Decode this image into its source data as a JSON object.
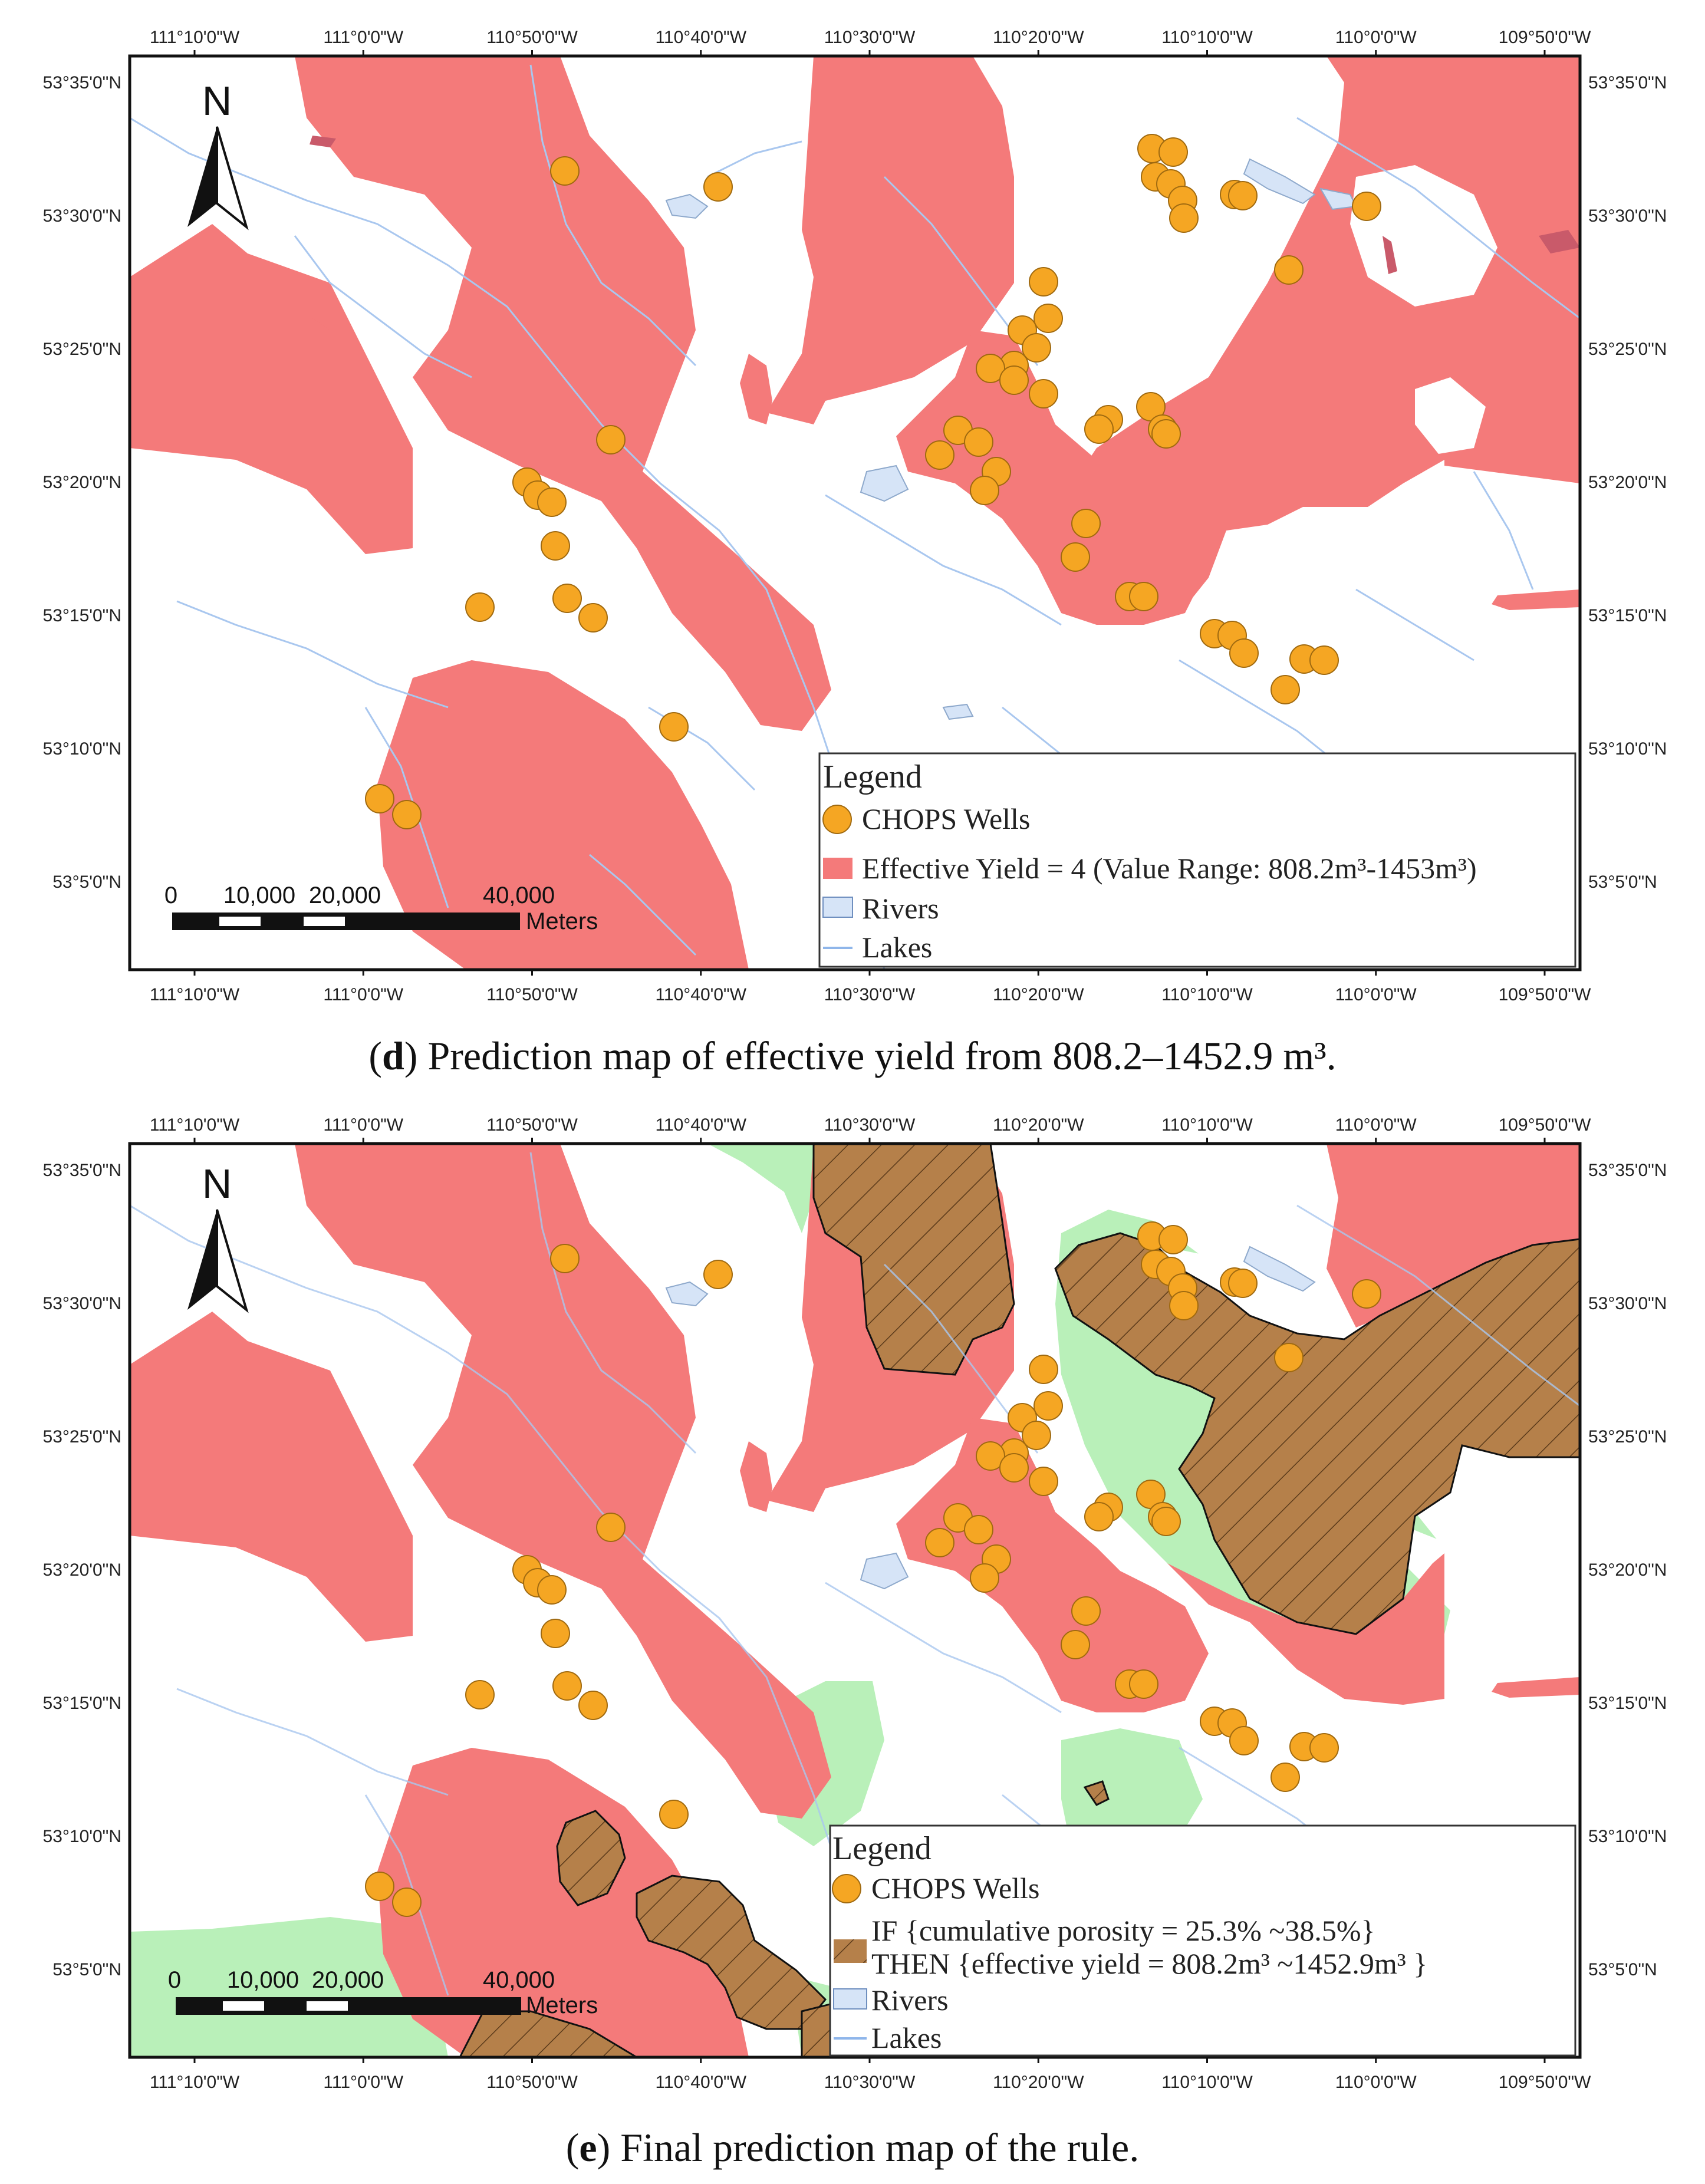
{
  "axes": {
    "x_ticks": [
      "111°10'0\"W",
      "111°0'0\"W",
      "110°50'0\"W",
      "110°40'0\"W",
      "110°30'0\"W",
      "110°20'0\"W",
      "110°10'0\"W",
      "110°0'0\"W",
      "109°50'0\"W"
    ],
    "y_ticks": [
      "53°35'0\"N",
      "53°30'0\"N",
      "53°25'0\"N",
      "53°20'0\"N",
      "53°15'0\"N",
      "53°10'0\"N",
      "53°5'0\"N"
    ]
  },
  "north_arrow": {
    "label": "N",
    "icon": "north-arrow-icon"
  },
  "scale_bar": {
    "labels": [
      "0",
      "10,000",
      "20,000",
      "40,000"
    ],
    "unit": "Meters"
  },
  "colors": {
    "yield_zone": "#f47a7a",
    "rule_zone": "#b5804a",
    "porosity_zone": "#b9f0b9",
    "well": "#f5a623",
    "river": "#a9c7ef",
    "lake": "#d6e4f7"
  },
  "panels": {
    "d": {
      "caption_letter": "d",
      "caption_text": " Prediction map of effective yield from 808.2–1452.9 m³.",
      "legend": {
        "title": "Legend",
        "wells": "CHOPS Wells",
        "zone": "Effective Yield = 4 (Value Range: 808.2m³-1453m³)",
        "rivers": "Rivers",
        "lakes": "Lakes"
      }
    },
    "e": {
      "caption_letter": "e",
      "caption_text": " Final prediction map of the rule.",
      "legend": {
        "title": "Legend",
        "wells": "CHOPS Wells",
        "rule_if": "IF {cumulative porosity = 25.3% ~38.5%}",
        "rule_then": "THEN {effective yield = 808.2m³ ~1452.9m³ }",
        "rivers": "Rivers",
        "lakes": "Lakes"
      }
    }
  }
}
